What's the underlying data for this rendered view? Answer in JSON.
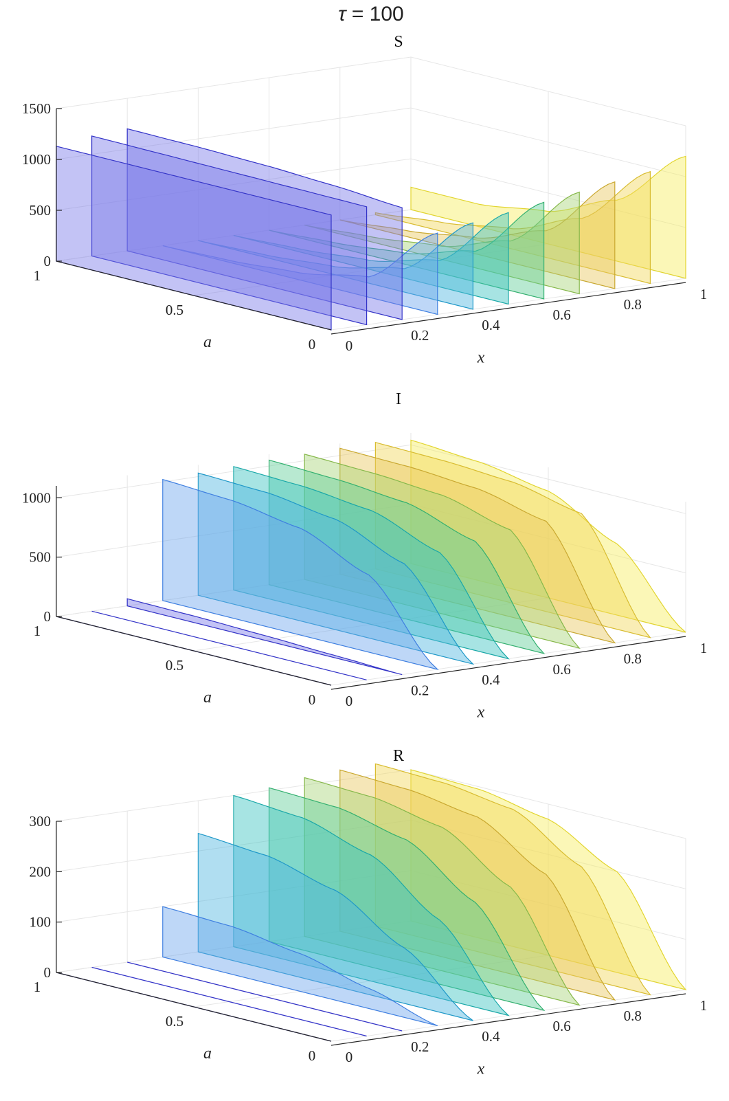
{
  "figure": {
    "title_prefix": "τ",
    "title_suffix": " = 100"
  },
  "colors": {
    "slices": [
      "#7b7be8",
      "#7b7be8",
      "#7b7be8",
      "#6fa6ee",
      "#4fb6e0",
      "#3cc4c2",
      "#62cf9a",
      "#a8d47a",
      "#e8c860",
      "#f2d85a",
      "#f7ee5f"
    ],
    "edges": [
      "#3434c8",
      "#3434c8",
      "#3434c8",
      "#3f7fe0",
      "#1f98c8",
      "#1aa8a8",
      "#34b070",
      "#86b84a",
      "#c9a830",
      "#d8bc30",
      "#e2d530"
    ]
  },
  "chart_data": [
    {
      "type": "waterfall",
      "title": "S",
      "xlabel": "x",
      "ylabel": "a",
      "xlim": [
        0,
        1
      ],
      "ylim": [
        0,
        1
      ],
      "zlim": [
        0,
        1500
      ],
      "xticks": [
        "0",
        "0.2",
        "0.4",
        "0.6",
        "0.8",
        "1"
      ],
      "yticks": [
        "0",
        "0.5",
        "1"
      ],
      "zticks": [
        "0",
        "500",
        "1000",
        "1500"
      ],
      "grid": true,
      "series": [
        {
          "x": 0.0,
          "a": [
            0,
            0.25,
            0.5,
            0.75,
            1.0
          ],
          "values": [
            1130,
            1130,
            1130,
            1130,
            1130
          ]
        },
        {
          "x": 0.1,
          "a": [
            0,
            0.25,
            0.5,
            0.75,
            1.0
          ],
          "values": [
            1160,
            1165,
            1170,
            1175,
            1180
          ]
        },
        {
          "x": 0.2,
          "a": [
            0,
            0.25,
            0.5,
            0.75,
            1.0
          ],
          "values": [
            1100,
            1150,
            1180,
            1195,
            1200
          ]
        },
        {
          "x": 0.3,
          "a": [
            0,
            0.25,
            0.5,
            0.75,
            1.0
          ],
          "values": [
            800,
            200,
            70,
            20,
            0
          ]
        },
        {
          "x": 0.4,
          "a": [
            0,
            0.25,
            0.5,
            0.75,
            1.0
          ],
          "values": [
            850,
            230,
            80,
            25,
            0
          ]
        },
        {
          "x": 0.5,
          "a": [
            0,
            0.25,
            0.5,
            0.75,
            1.0
          ],
          "values": [
            900,
            260,
            90,
            30,
            0
          ]
        },
        {
          "x": 0.6,
          "a": [
            0,
            0.25,
            0.5,
            0.75,
            1.0
          ],
          "values": [
            950,
            300,
            110,
            40,
            0
          ]
        },
        {
          "x": 0.7,
          "a": [
            0,
            0.25,
            0.5,
            0.75,
            1.0
          ],
          "values": [
            1000,
            350,
            130,
            50,
            0
          ]
        },
        {
          "x": 0.8,
          "a": [
            0,
            0.25,
            0.5,
            0.75,
            1.0
          ],
          "values": [
            1050,
            400,
            160,
            60,
            0
          ]
        },
        {
          "x": 0.9,
          "a": [
            0,
            0.25,
            0.5,
            0.75,
            1.0
          ],
          "values": [
            1100,
            470,
            200,
            90,
            20
          ]
        },
        {
          "x": 1.0,
          "a": [
            0,
            0.25,
            0.5,
            0.75,
            1.0
          ],
          "values": [
            1200,
            600,
            320,
            220,
            220
          ]
        }
      ]
    },
    {
      "type": "waterfall",
      "title": "I",
      "xlabel": "x",
      "ylabel": "a",
      "xlim": [
        0,
        1
      ],
      "ylim": [
        0,
        1
      ],
      "zlim": [
        0,
        1100
      ],
      "xticks": [
        "0",
        "0.2",
        "0.4",
        "0.6",
        "0.8",
        "1"
      ],
      "yticks": [
        "0",
        "0.5",
        "1"
      ],
      "zticks": [
        "0",
        "500",
        "1000"
      ],
      "grid": true,
      "series": [
        {
          "x": 0.0,
          "a": [
            0,
            0.25,
            0.5,
            0.75,
            1.0
          ],
          "values": [
            0,
            0,
            0,
            0,
            0
          ]
        },
        {
          "x": 0.1,
          "a": [
            0,
            0.25,
            0.5,
            0.75,
            1.0
          ],
          "values": [
            0,
            0,
            0,
            0,
            0
          ]
        },
        {
          "x": 0.2,
          "a": [
            0,
            0.25,
            0.5,
            0.75,
            1.0
          ],
          "values": [
            0,
            20,
            40,
            55,
            60
          ]
        },
        {
          "x": 0.3,
          "a": [
            0,
            0.25,
            0.5,
            0.75,
            1.0
          ],
          "values": [
            0,
            650,
            900,
            990,
            1020
          ]
        },
        {
          "x": 0.4,
          "a": [
            0,
            0.25,
            0.5,
            0.75,
            1.0
          ],
          "values": [
            0,
            700,
            930,
            1010,
            1030
          ]
        },
        {
          "x": 0.5,
          "a": [
            0,
            0.25,
            0.5,
            0.75,
            1.0
          ],
          "values": [
            0,
            750,
            960,
            1020,
            1040
          ]
        },
        {
          "x": 0.6,
          "a": [
            0,
            0.25,
            0.5,
            0.75,
            1.0
          ],
          "values": [
            0,
            800,
            980,
            1030,
            1050
          ]
        },
        {
          "x": 0.7,
          "a": [
            0,
            0.25,
            0.5,
            0.75,
            1.0
          ],
          "values": [
            0,
            850,
            1000,
            1040,
            1055
          ]
        },
        {
          "x": 0.8,
          "a": [
            0,
            0.25,
            0.5,
            0.75,
            1.0
          ],
          "values": [
            0,
            880,
            1010,
            1050,
            1060
          ]
        },
        {
          "x": 0.9,
          "a": [
            0,
            0.25,
            0.5,
            0.75,
            1.0
          ],
          "values": [
            0,
            900,
            1020,
            1055,
            1065
          ]
        },
        {
          "x": 1.0,
          "a": [
            0,
            0.25,
            0.5,
            0.75,
            1.0
          ],
          "values": [
            0,
            600,
            900,
            1000,
            1040
          ]
        }
      ]
    },
    {
      "type": "waterfall",
      "title": "R",
      "xlabel": "x",
      "ylabel": "a",
      "xlim": [
        0,
        1
      ],
      "ylim": [
        0,
        1
      ],
      "zlim": [
        0,
        300
      ],
      "xticks": [
        "0",
        "0.2",
        "0.4",
        "0.6",
        "0.8",
        "1"
      ],
      "yticks": [
        "0",
        "0.5",
        "1"
      ],
      "zticks": [
        "0",
        "100",
        "200",
        "300"
      ],
      "grid": true,
      "series": [
        {
          "x": 0.0,
          "a": [
            0,
            0.25,
            0.5,
            0.75,
            1.0
          ],
          "values": [
            0,
            0,
            0,
            0,
            0
          ]
        },
        {
          "x": 0.1,
          "a": [
            0,
            0.25,
            0.5,
            0.75,
            1.0
          ],
          "values": [
            0,
            0,
            0,
            0,
            0
          ]
        },
        {
          "x": 0.2,
          "a": [
            0,
            0.25,
            0.5,
            0.75,
            1.0
          ],
          "values": [
            0,
            0,
            0,
            0,
            0
          ]
        },
        {
          "x": 0.3,
          "a": [
            0,
            0.25,
            0.5,
            0.75,
            1.0
          ],
          "values": [
            0,
            40,
            75,
            95,
            100
          ]
        },
        {
          "x": 0.4,
          "a": [
            0,
            0.25,
            0.5,
            0.75,
            1.0
          ],
          "values": [
            0,
            110,
            190,
            225,
            235
          ]
        },
        {
          "x": 0.5,
          "a": [
            0,
            0.25,
            0.5,
            0.75,
            1.0
          ],
          "values": [
            0,
            155,
            250,
            290,
            300
          ]
        },
        {
          "x": 0.6,
          "a": [
            0,
            0.25,
            0.5,
            0.75,
            1.0
          ],
          "values": [
            0,
            180,
            270,
            300,
            305
          ]
        },
        {
          "x": 0.7,
          "a": [
            0,
            0.25,
            0.5,
            0.75,
            1.0
          ],
          "values": [
            0,
            200,
            285,
            310,
            315
          ]
        },
        {
          "x": 0.8,
          "a": [
            0,
            0.25,
            0.5,
            0.75,
            1.0
          ],
          "values": [
            0,
            215,
            295,
            315,
            320
          ]
        },
        {
          "x": 0.9,
          "a": [
            0,
            0.25,
            0.5,
            0.75,
            1.0
          ],
          "values": [
            0,
            220,
            300,
            318,
            322
          ]
        },
        {
          "x": 1.0,
          "a": [
            0,
            0.25,
            0.5,
            0.75,
            1.0
          ],
          "values": [
            0,
            200,
            270,
            295,
            300
          ]
        }
      ]
    }
  ]
}
